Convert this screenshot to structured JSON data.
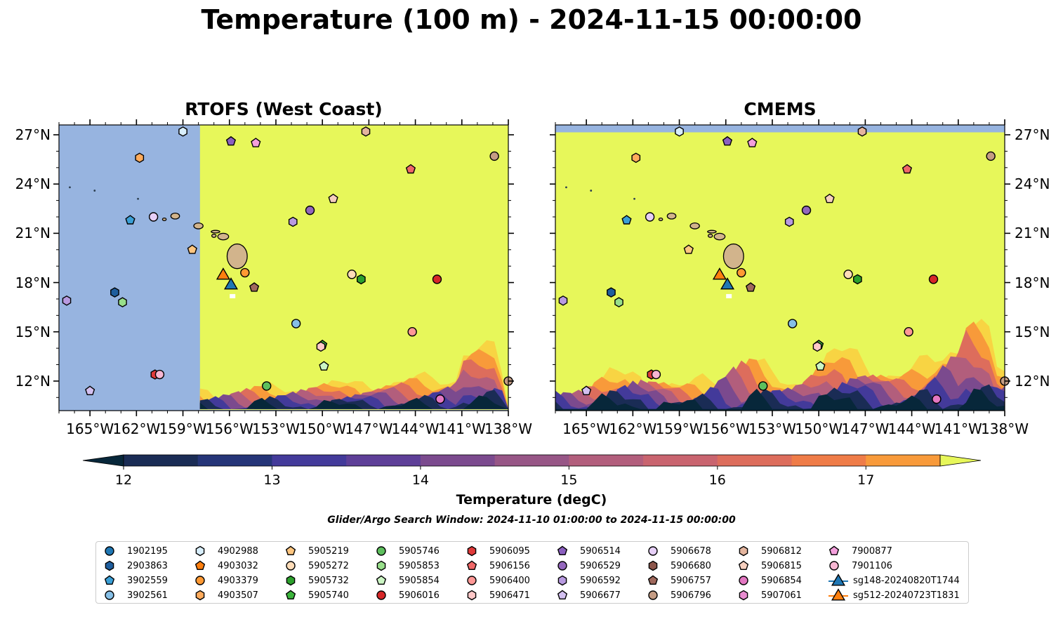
{
  "title": "Temperature (100 m) - 2024-11-15 00:00:00",
  "panels": [
    {
      "title": "RTOFS (West Coast)"
    },
    {
      "title": "CMEMS"
    }
  ],
  "lon_labels": [
    "165°W",
    "162°W",
    "159°W",
    "156°W",
    "153°W",
    "150°W",
    "147°W",
    "144°W",
    "141°W",
    "138°W"
  ],
  "lat_labels": [
    "27°N",
    "24°N",
    "21°N",
    "18°N",
    "15°N",
    "12°N"
  ],
  "map_extent": {
    "lon_min": -167,
    "lon_max": -138,
    "lat_min": 10.2,
    "lat_max": 27.6
  },
  "colorbar": {
    "label": "Temperature (degC)",
    "ticks": [
      "12",
      "13",
      "14",
      "15",
      "16",
      "17"
    ],
    "levels_min": 12.0,
    "levels_max": 17.5,
    "step": 0.5,
    "colors": [
      "#07273a",
      "#1a2c55",
      "#253578",
      "#433a9a",
      "#5e3f98",
      "#7b4a8e",
      "#975686",
      "#b25e7c",
      "#c9646f",
      "#dd6d5c",
      "#ef7c48",
      "#f89a3a",
      "#f8b83c",
      "#f8d443",
      "#e7f75a"
    ],
    "land_color": "#d2b48c",
    "nodata_color": "#97b4e0"
  },
  "search_window": "Glider/Argo Search Window: 2024-11-10 01:00:00 to 2024-11-15 00:00:00",
  "legend": [
    {
      "label": "1902195",
      "marker": "circle",
      "color": "#1f77b4"
    },
    {
      "label": "2903863",
      "marker": "hexagon",
      "color": "#1f5e9e"
    },
    {
      "label": "3902559",
      "marker": "pentagon",
      "color": "#3a9fd6"
    },
    {
      "label": "3902561",
      "marker": "circle",
      "color": "#86bfe6"
    },
    {
      "label": "4902988",
      "marker": "hexagon",
      "color": "#d8eefb"
    },
    {
      "label": "4903032",
      "marker": "pentagon",
      "color": "#ff7f0e"
    },
    {
      "label": "4903379",
      "marker": "circle",
      "color": "#ff9933"
    },
    {
      "label": "4903507",
      "marker": "hexagon",
      "color": "#ffab5c"
    },
    {
      "label": "5905219",
      "marker": "pentagon",
      "color": "#ffc680"
    },
    {
      "label": "5905272",
      "marker": "circle",
      "color": "#ffdcb8"
    },
    {
      "label": "5905732",
      "marker": "hexagon",
      "color": "#2ca02c"
    },
    {
      "label": "5905740",
      "marker": "pentagon",
      "color": "#3cb43c"
    },
    {
      "label": "5905746",
      "marker": "circle",
      "color": "#5dbf5d"
    },
    {
      "label": "5905853",
      "marker": "hexagon",
      "color": "#98df8a"
    },
    {
      "label": "5905854",
      "marker": "pentagon",
      "color": "#ccf5c4"
    },
    {
      "label": "5906016",
      "marker": "circle",
      "color": "#d62728"
    },
    {
      "label": "5906095",
      "marker": "hexagon",
      "color": "#e03a3a"
    },
    {
      "label": "5906156",
      "marker": "pentagon",
      "color": "#f06868"
    },
    {
      "label": "5906400",
      "marker": "circle",
      "color": "#ff9896"
    },
    {
      "label": "5906471",
      "marker": "hexagon",
      "color": "#ffc8c8"
    },
    {
      "label": "5906514",
      "marker": "pentagon",
      "color": "#8b5fbf"
    },
    {
      "label": "5906529",
      "marker": "circle",
      "color": "#9467bd"
    },
    {
      "label": "5906592",
      "marker": "hexagon",
      "color": "#b89ae0"
    },
    {
      "label": "5906677",
      "marker": "pentagon",
      "color": "#d3c0f0"
    },
    {
      "label": "5906678",
      "marker": "circle",
      "color": "#e6cff7"
    },
    {
      "label": "5906680",
      "marker": "hexagon",
      "color": "#8c564b"
    },
    {
      "label": "5906757",
      "marker": "pentagon",
      "color": "#a0695d"
    },
    {
      "label": "5906796",
      "marker": "circle",
      "color": "#c49c84"
    },
    {
      "label": "5906812",
      "marker": "hexagon",
      "color": "#e4b59e"
    },
    {
      "label": "5906815",
      "marker": "pentagon",
      "color": "#f6cfbe"
    },
    {
      "label": "5906854",
      "marker": "circle",
      "color": "#e377c2"
    },
    {
      "label": "5907061",
      "marker": "hexagon",
      "color": "#e88cd0"
    },
    {
      "label": "7900877",
      "marker": "pentagon",
      "color": "#f49fdc"
    },
    {
      "label": "7901106",
      "marker": "circle",
      "color": "#f7b6d2"
    },
    {
      "label": "sg148-20240820T1744",
      "marker": "triangle-line",
      "color": "#1f77b4"
    },
    {
      "label": "sg512-20240723T1831",
      "marker": "triangle-line",
      "color": "#ff7f0e"
    }
  ],
  "floats": [
    {
      "label": "4902988",
      "lon": -159.0,
      "lat": 27.2
    },
    {
      "label": "5906514",
      "lon": -155.9,
      "lat": 26.6
    },
    {
      "label": "7900877",
      "lon": -154.3,
      "lat": 26.5
    },
    {
      "label": "5906812",
      "lon": -147.2,
      "lat": 27.2
    },
    {
      "label": "5906796",
      "lon": -138.9,
      "lat": 25.7
    },
    {
      "label": "4903507",
      "lon": -161.8,
      "lat": 25.6
    },
    {
      "label": "5906156",
      "lon": -144.3,
      "lat": 24.9
    },
    {
      "label": "5906815",
      "lon": -149.3,
      "lat": 23.1
    },
    {
      "label": "5906529",
      "lon": -150.8,
      "lat": 22.4
    },
    {
      "label": "5906592",
      "lon": -151.9,
      "lat": 21.7
    },
    {
      "label": "3902559",
      "lon": -162.4,
      "lat": 21.8
    },
    {
      "label": "5906678",
      "lon": -160.9,
      "lat": 22.0
    },
    {
      "label": "5905219",
      "lon": -158.4,
      "lat": 20.0
    },
    {
      "label": "4903379",
      "lon": -155.0,
      "lat": 18.6
    },
    {
      "label": "5905272",
      "lon": -148.1,
      "lat": 18.5
    },
    {
      "label": "5905732",
      "lon": -147.5,
      "lat": 18.2
    },
    {
      "label": "5906016",
      "lon": -142.6,
      "lat": 18.2
    },
    {
      "label": "5906757",
      "lon": -154.4,
      "lat": 17.7
    },
    {
      "label": "2903863",
      "lon": -163.4,
      "lat": 17.4
    },
    {
      "label": "5905853",
      "lon": -162.9,
      "lat": 16.8
    },
    {
      "label": "5906592",
      "lon": -166.5,
      "lat": 16.9
    },
    {
      "label": "3902561",
      "lon": -151.7,
      "lat": 15.5
    },
    {
      "label": "5906400",
      "lon": -144.2,
      "lat": 15.0
    },
    {
      "label": "5905740",
      "lon": -150.0,
      "lat": 14.2
    },
    {
      "label": "5906471",
      "lon": -150.1,
      "lat": 14.1
    },
    {
      "label": "5905854",
      "lon": -149.9,
      "lat": 12.9
    },
    {
      "label": "5905746",
      "lon": -153.6,
      "lat": 11.7
    },
    {
      "label": "5906095",
      "lon": -160.8,
      "lat": 12.4
    },
    {
      "label": "7901106",
      "lon": -160.5,
      "lat": 12.4
    },
    {
      "label": "5906677",
      "lon": -165.0,
      "lat": 11.4
    },
    {
      "label": "5906854",
      "lon": -142.4,
      "lat": 10.9
    },
    {
      "label": "5906796",
      "lon": -138.0,
      "lat": 12.0
    }
  ],
  "gliders": [
    {
      "label": "sg512-20240723T1831",
      "lon": -156.4,
      "lat": 18.5
    },
    {
      "label": "sg148-20240820T1744",
      "lon": -155.9,
      "lat": 17.9
    }
  ]
}
